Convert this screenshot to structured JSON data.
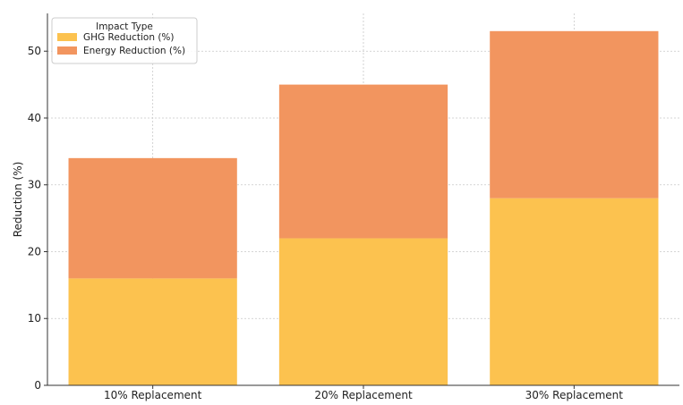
{
  "chart_data": {
    "type": "bar",
    "stacked": true,
    "categories": [
      "10% Replacement",
      "20% Replacement",
      "30% Replacement"
    ],
    "series": [
      {
        "name": "GHG Reduction (%)",
        "values": [
          16,
          22,
          28
        ],
        "color": "#fcc24f"
      },
      {
        "name": "Energy Reduction (%)",
        "values": [
          18,
          23,
          25
        ],
        "color": "#f2955f"
      }
    ],
    "title": "",
    "xlabel": "",
    "ylabel": "Reduction (%)",
    "ylim": [
      0,
      55.65
    ],
    "yticks": [
      0,
      10,
      20,
      30,
      40,
      50
    ],
    "grid": true,
    "legend": {
      "title": "Impact Type",
      "placement": "top-left"
    }
  }
}
